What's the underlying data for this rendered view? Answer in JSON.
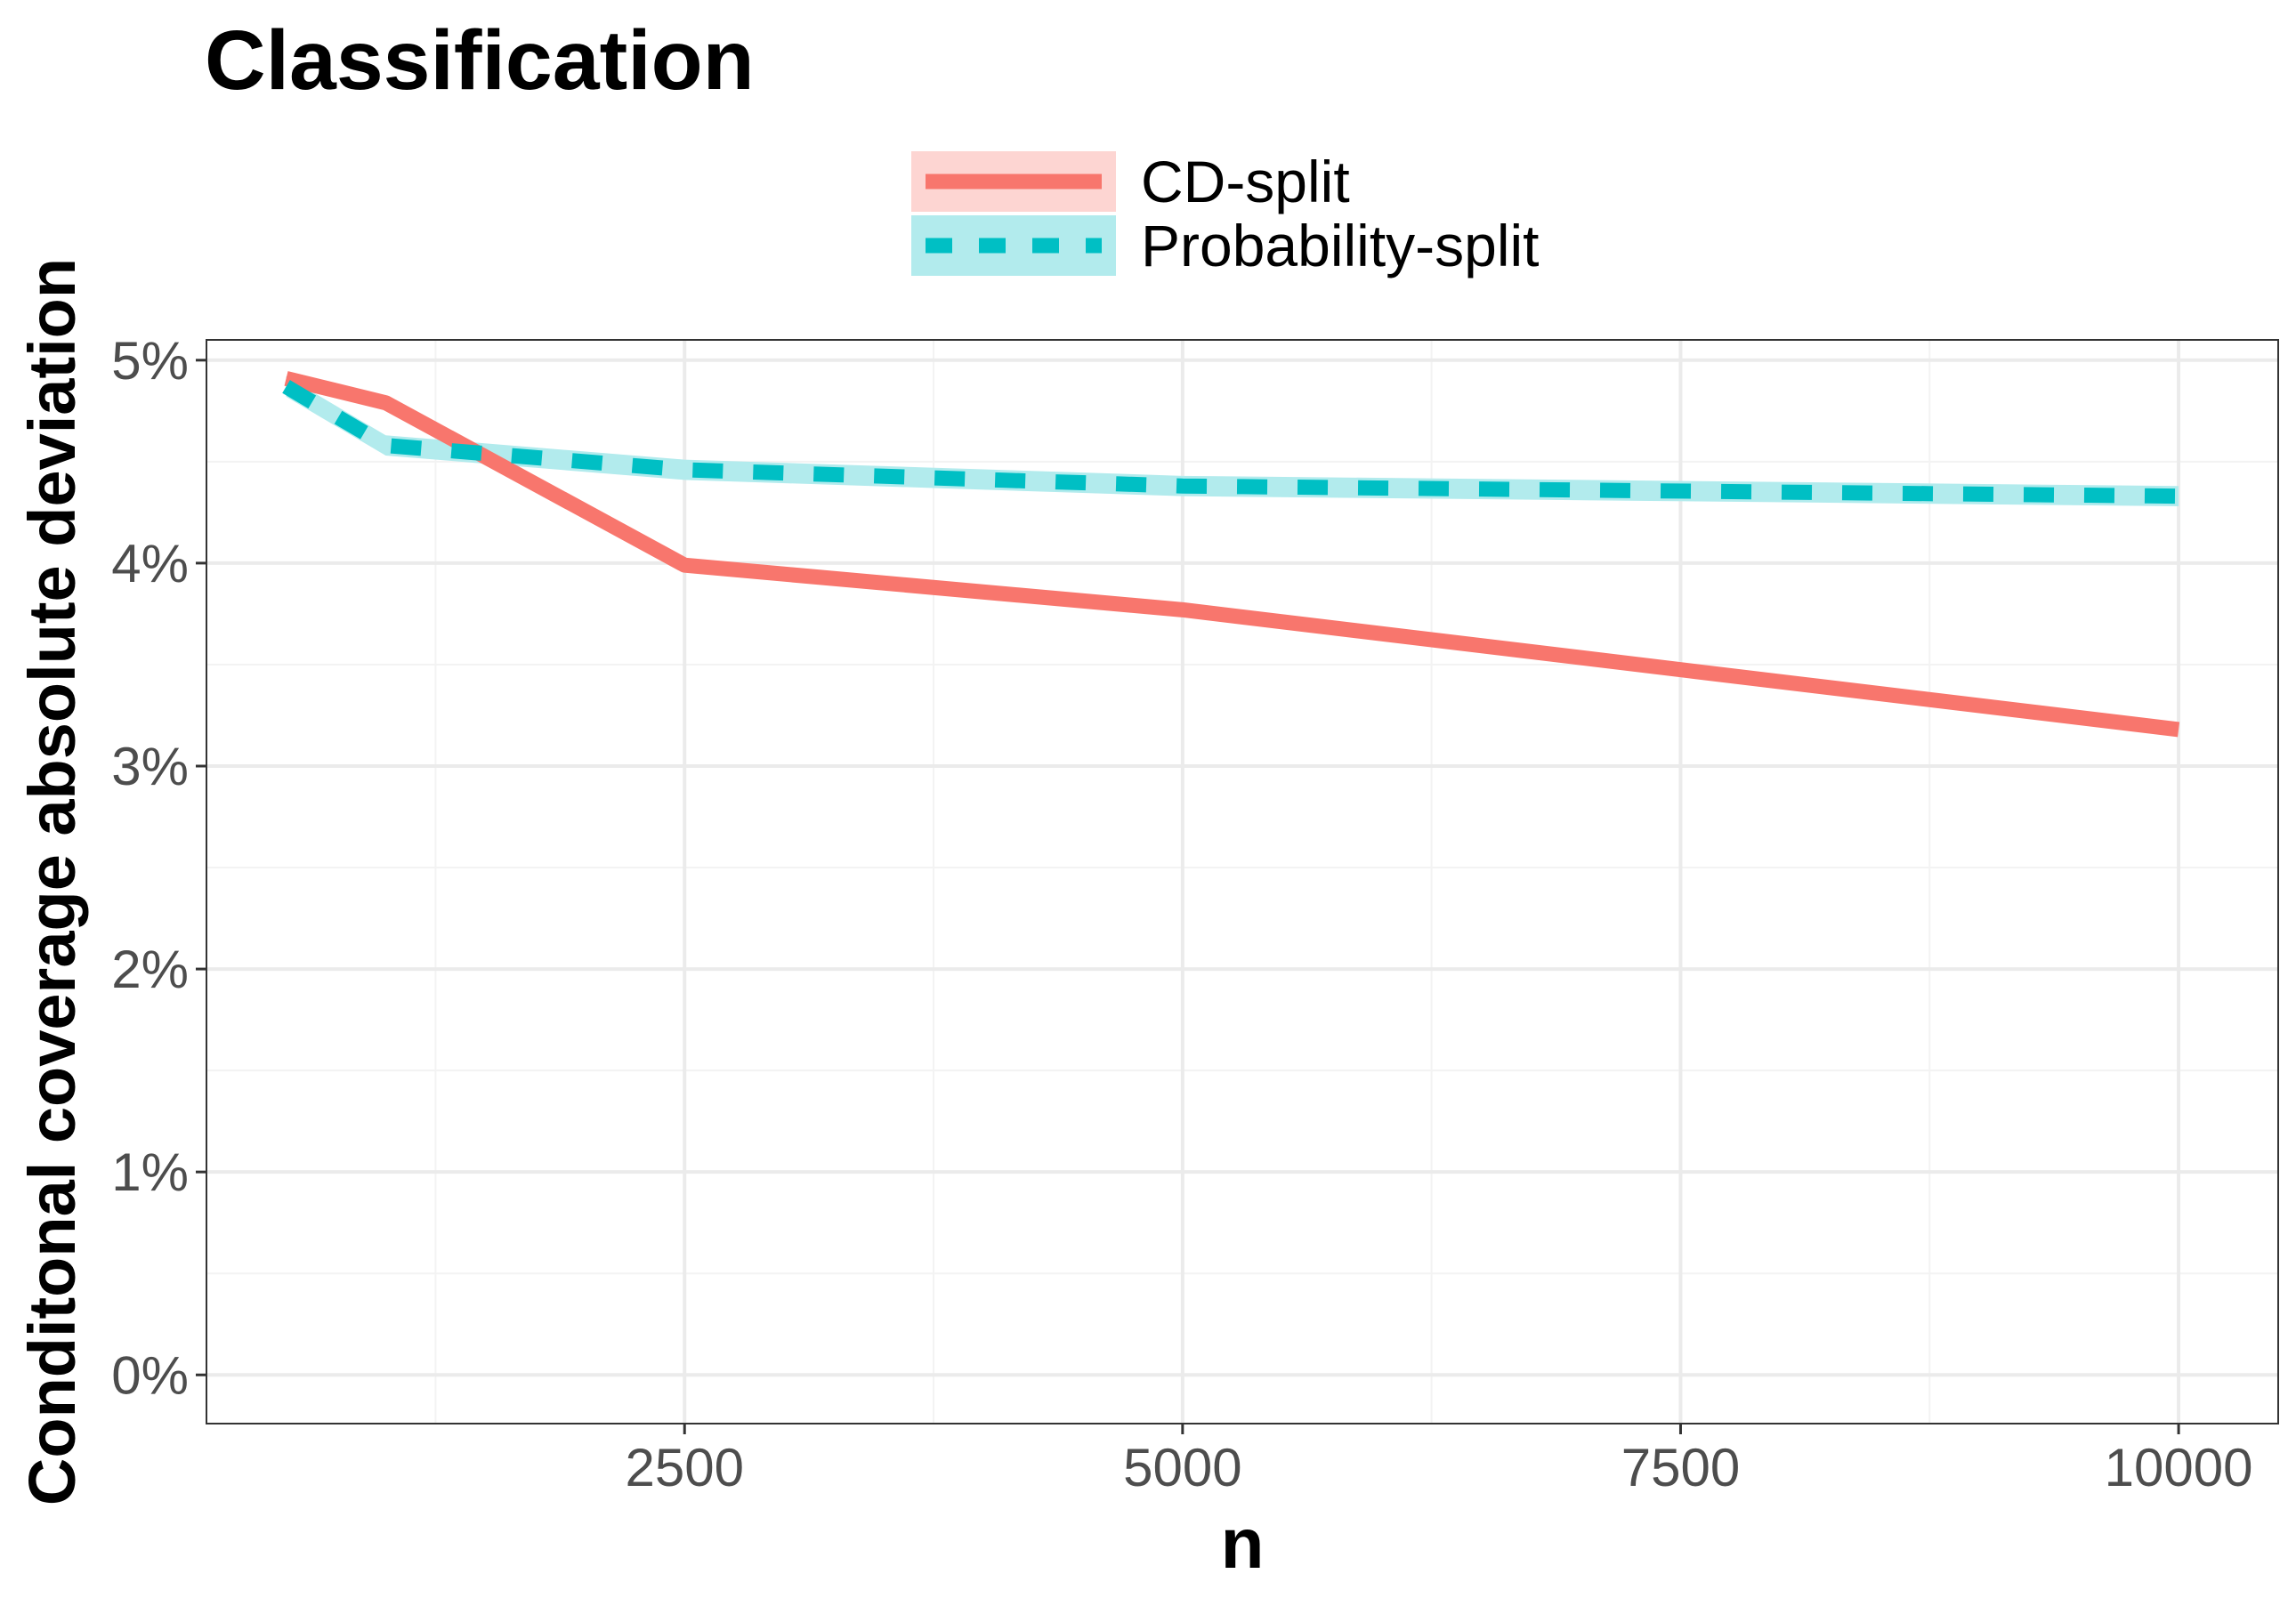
{
  "chart_data": {
    "type": "line",
    "title": "Classification",
    "xlabel": "n",
    "ylabel": "Conditonal coverage absolute deviation",
    "xlim": [
      100,
      10500
    ],
    "ylim": [
      -0.0024,
      0.051
    ],
    "x_ticks": [
      {
        "value": 2500,
        "label": "2500"
      },
      {
        "value": 5000,
        "label": "5000"
      },
      {
        "value": 7500,
        "label": "7500"
      },
      {
        "value": 10000,
        "label": "10000"
      }
    ],
    "y_ticks": [
      {
        "value": 0.0,
        "label": "0%"
      },
      {
        "value": 0.01,
        "label": "1%"
      },
      {
        "value": 0.02,
        "label": "2%"
      },
      {
        "value": 0.03,
        "label": "3%"
      },
      {
        "value": 0.04,
        "label": "4%"
      },
      {
        "value": 0.05,
        "label": "5%"
      }
    ],
    "x_minor_ticks": [
      1250,
      3750,
      6250,
      8750
    ],
    "y_minor_ticks": [
      0.005,
      0.015,
      0.025,
      0.035,
      0.045
    ],
    "grid": true,
    "legend_position": "top",
    "series": [
      {
        "name": "CD-split",
        "color": "#F8766D",
        "band_color": "#FDD5D2",
        "dash": "solid",
        "x": [
          500,
          1000,
          2500,
          5000,
          10000
        ],
        "y": [
          0.0491,
          0.0479,
          0.0399,
          0.0377,
          0.0318
        ],
        "lower": [
          0.049,
          0.0478,
          0.0398,
          0.0376,
          0.0317
        ],
        "upper": [
          0.0492,
          0.048,
          0.04,
          0.0378,
          0.0319
        ]
      },
      {
        "name": "Probability-split",
        "color": "#00BFC4",
        "band_color": "#B2EBED",
        "dash": "dashed",
        "x": [
          500,
          1000,
          2500,
          5000,
          10000
        ],
        "y": [
          0.0487,
          0.0458,
          0.0446,
          0.0438,
          0.0433
        ],
        "lower": [
          0.0484,
          0.0455,
          0.0443,
          0.0435,
          0.043
        ],
        "upper": [
          0.049,
          0.0461,
          0.0449,
          0.0441,
          0.0436
        ]
      }
    ]
  }
}
